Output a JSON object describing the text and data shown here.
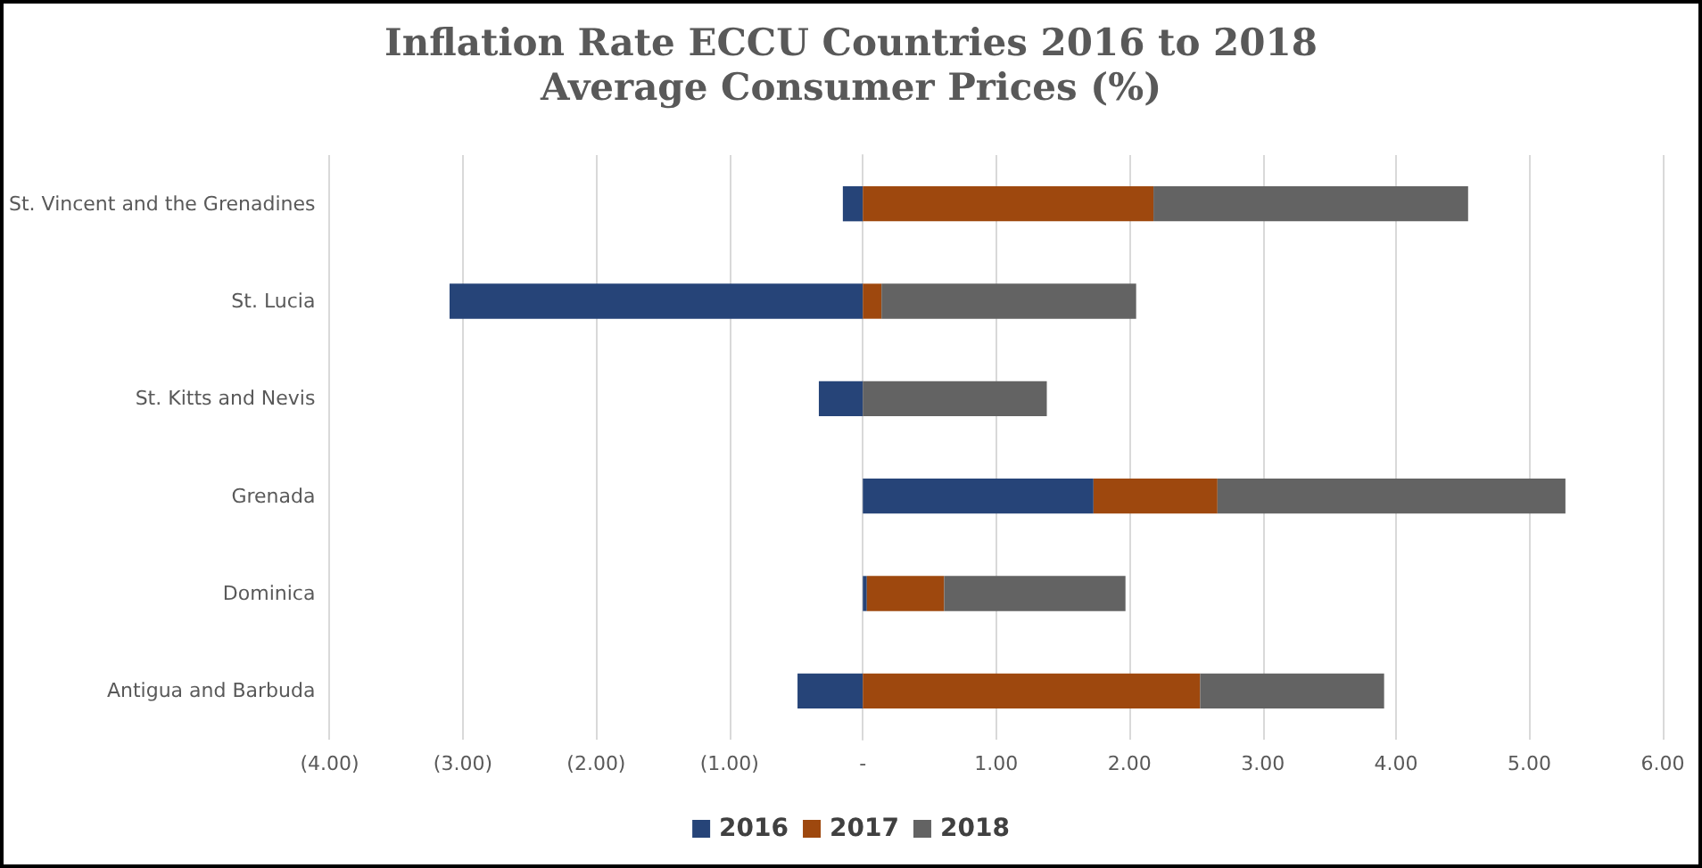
{
  "chart_data": {
    "type": "bar",
    "orientation": "horizontal",
    "stacked": true,
    "title": "Inflation Rate ECCU Countries 2016 to 2018",
    "subtitle": "Average Consumer Prices (%)",
    "categories": [
      "St. Vincent and the Grenadines",
      "St. Lucia",
      "St. Kitts and Nevis",
      "Grenada",
      "Dominica",
      "Antigua and Barbuda"
    ],
    "series": [
      {
        "name": "2016",
        "color": "#264478",
        "values": [
          -0.15,
          -3.1,
          -0.33,
          1.73,
          0.03,
          -0.49
        ]
      },
      {
        "name": "2017",
        "color": "#9e480e",
        "values": [
          2.18,
          0.14,
          0,
          0.93,
          0.58,
          2.53
        ]
      },
      {
        "name": "2018",
        "color": "#636363",
        "values": [
          2.36,
          1.91,
          1.38,
          2.61,
          1.36,
          1.38
        ]
      }
    ],
    "xlim": [
      -4,
      6
    ],
    "xticks": [
      {
        "value": -4,
        "label": "(4.00)"
      },
      {
        "value": -3,
        "label": "(3.00)"
      },
      {
        "value": -2,
        "label": "(2.00)"
      },
      {
        "value": -1,
        "label": "(1.00)"
      },
      {
        "value": 0,
        "label": "-"
      },
      {
        "value": 1,
        "label": "1.00"
      },
      {
        "value": 2,
        "label": "2.00"
      },
      {
        "value": 3,
        "label": "3.00"
      },
      {
        "value": 4,
        "label": "4.00"
      },
      {
        "value": 5,
        "label": "5.00"
      },
      {
        "value": 6,
        "label": "6.00"
      }
    ],
    "grid": "x",
    "legend": "bottom"
  }
}
